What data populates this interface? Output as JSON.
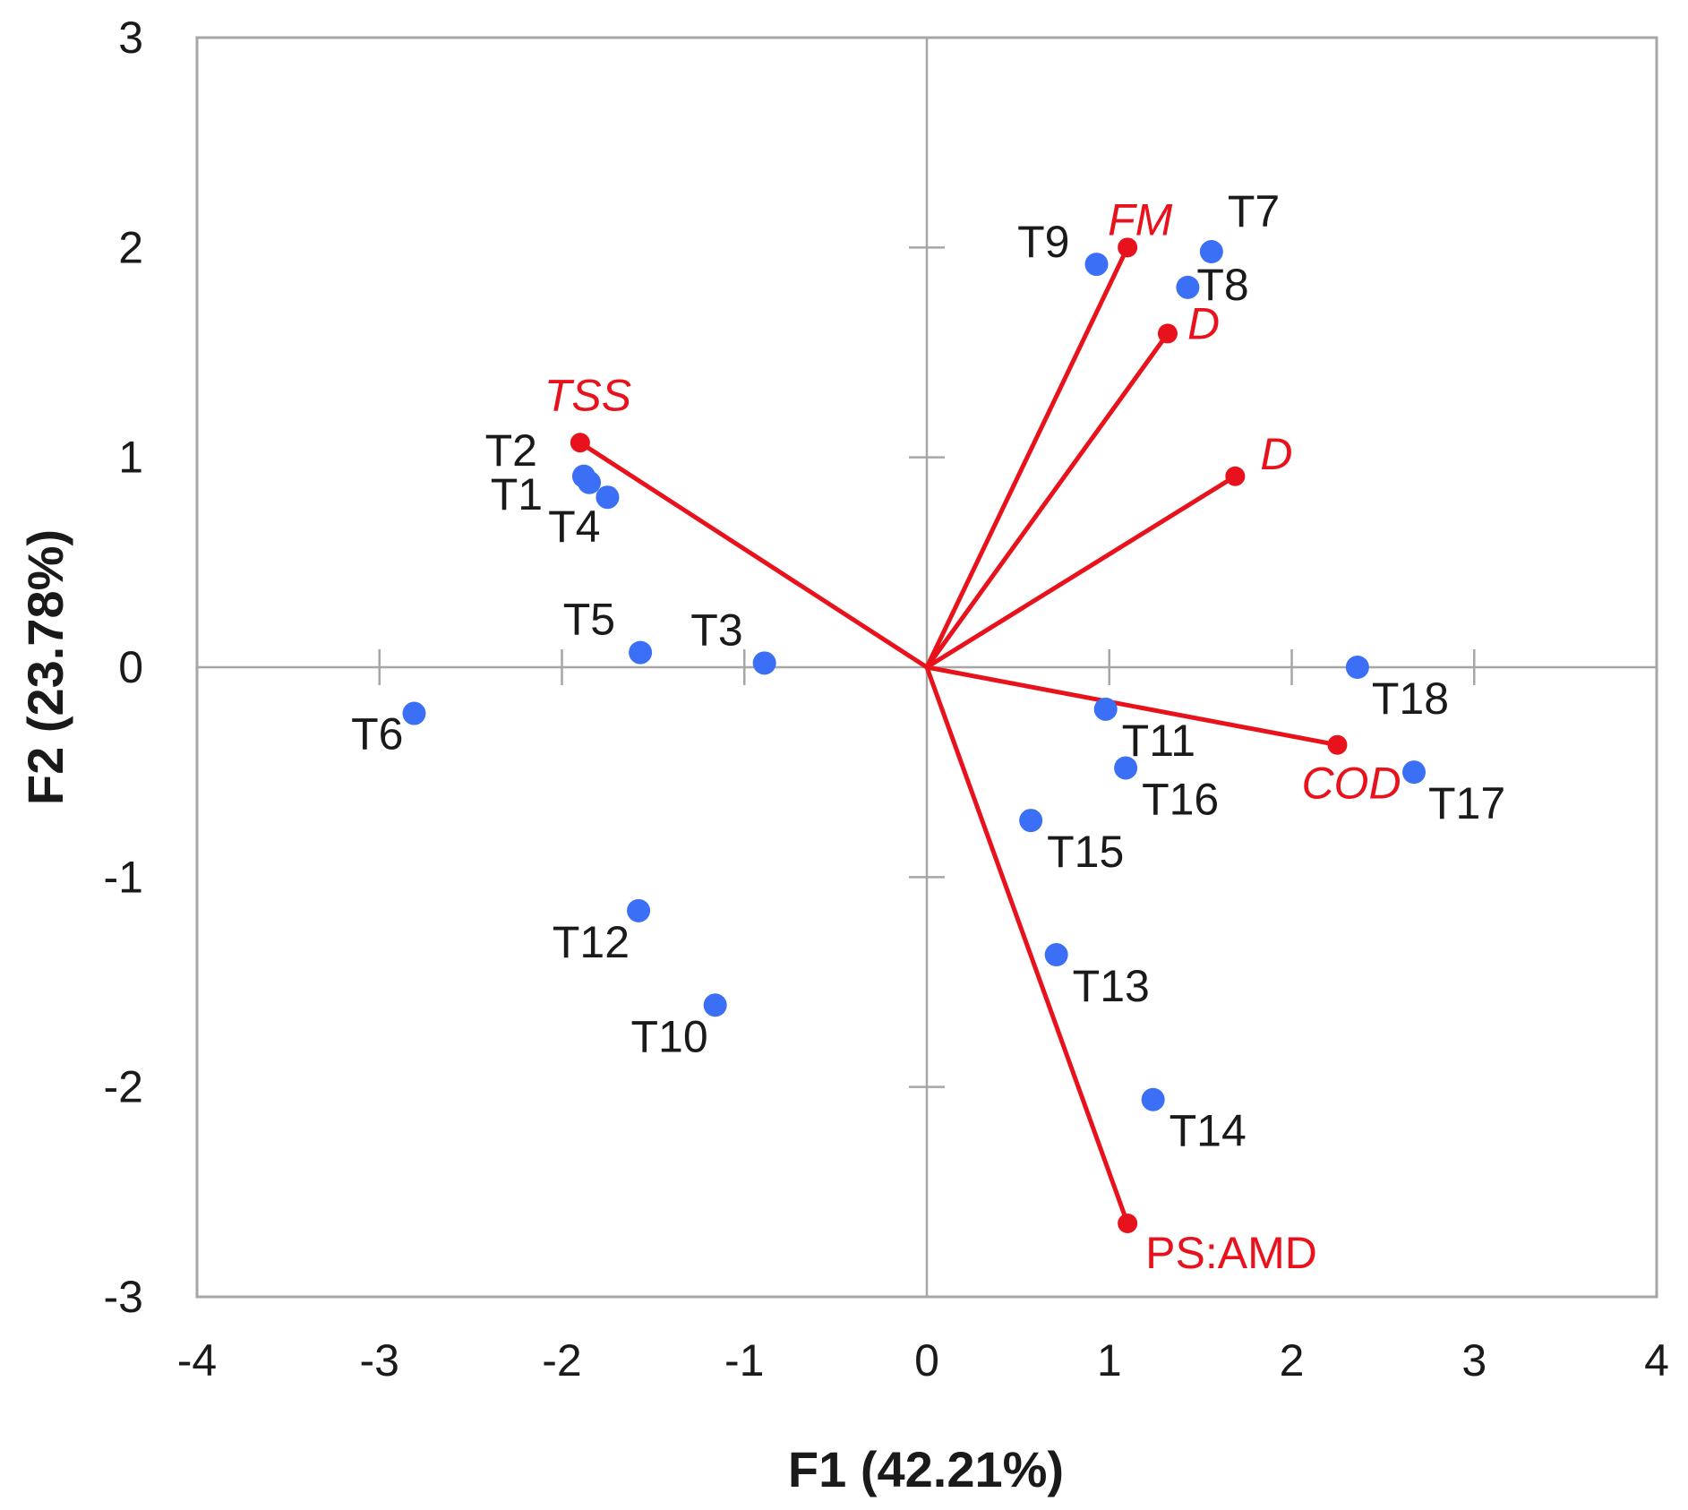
{
  "chart_data": {
    "type": "scatter",
    "subtype": "pca-biplot",
    "title": "",
    "xlabel": "F1 (42.21%)",
    "ylabel": "F2 (23.78%)",
    "xlim": [
      -4,
      4
    ],
    "ylim": [
      -3,
      3
    ],
    "xticks": [
      "-4",
      "-3",
      "-2",
      "-1",
      "0",
      "1",
      "2",
      "3",
      "4"
    ],
    "yticks": [
      "3",
      "2",
      "1",
      "0",
      "-1",
      "-2",
      "-3"
    ],
    "colors": {
      "observations": "#3b6ff5",
      "variables": "#e8121c",
      "axes": "#a6a6a6",
      "frame": "#a6a6a6"
    },
    "observations": [
      {
        "label": "T1",
        "x": -1.85,
        "y": 0.88
      },
      {
        "label": "T2",
        "x": -1.88,
        "y": 0.91
      },
      {
        "label": "T3",
        "x": -0.89,
        "y": 0.02
      },
      {
        "label": "T4",
        "x": -1.75,
        "y": 0.81
      },
      {
        "label": "T5",
        "x": -1.57,
        "y": 0.07
      },
      {
        "label": "T6",
        "x": -2.81,
        "y": -0.22
      },
      {
        "label": "T7",
        "x": 1.56,
        "y": 1.98
      },
      {
        "label": "T8",
        "x": 1.43,
        "y": 1.81
      },
      {
        "label": "T9",
        "x": 0.93,
        "y": 1.92
      },
      {
        "label": "T10",
        "x": -1.16,
        "y": -1.61
      },
      {
        "label": "T11",
        "x": 0.98,
        "y": -0.2
      },
      {
        "label": "T12",
        "x": -1.58,
        "y": -1.16
      },
      {
        "label": "T13",
        "x": 0.71,
        "y": -1.37
      },
      {
        "label": "T14",
        "x": 1.24,
        "y": -2.06
      },
      {
        "label": "T15",
        "x": 0.57,
        "y": -0.73
      },
      {
        "label": "T16",
        "x": 1.09,
        "y": -0.48
      },
      {
        "label": "T17",
        "x": 2.67,
        "y": -0.5
      },
      {
        "label": "T18",
        "x": 2.36,
        "y": 0.0
      }
    ],
    "variables": [
      {
        "label": "TSS",
        "x": -1.9,
        "y": 1.07,
        "italic": true
      },
      {
        "label": "FM",
        "x": 1.1,
        "y": 2.0,
        "italic": true
      },
      {
        "label": "D",
        "x": 1.32,
        "y": 1.59,
        "italic": true
      },
      {
        "label": "D",
        "x": 1.69,
        "y": 0.91,
        "italic": true
      },
      {
        "label": "COD",
        "x": 2.25,
        "y": -0.37,
        "italic": true
      },
      {
        "label": "PS:AMD",
        "x": 1.1,
        "y": -2.65,
        "italic": false
      }
    ]
  }
}
